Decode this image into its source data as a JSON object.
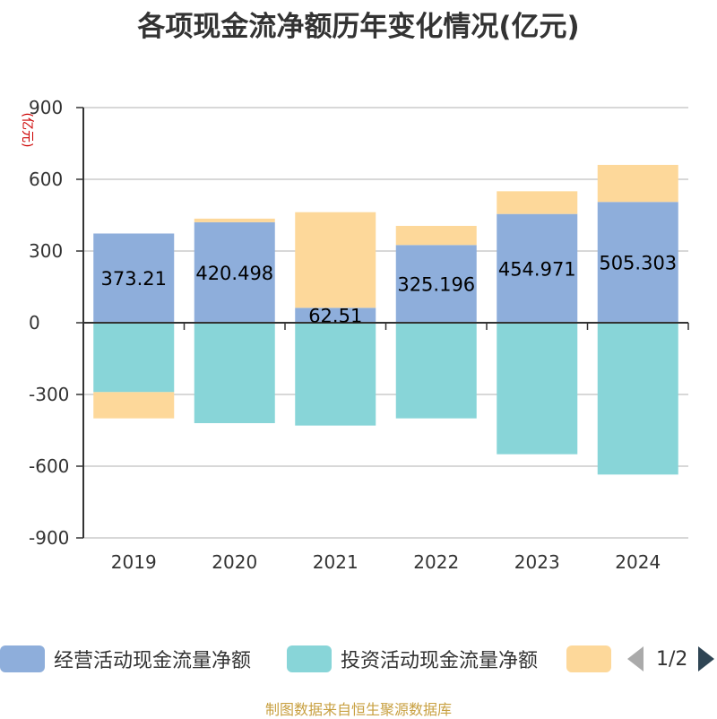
{
  "title": "各项现金流净额历年变化情况(亿元)",
  "source": "制图数据来自恒生聚源数据库",
  "legend_page": "1/2",
  "colors": {
    "operating": "#8eaedb",
    "investing": "#88d5d8",
    "financing": "#fdd89a",
    "axis": "#333333",
    "grid": "#cccccc",
    "unit": "#cc0000",
    "source": "#c8a041"
  },
  "chart_data": {
    "type": "bar",
    "stacked": true,
    "title": "各项现金流净额历年变化情况(亿元)",
    "ylabel": "(亿元)",
    "categories": [
      "2019",
      "2020",
      "2021",
      "2022",
      "2023",
      "2024"
    ],
    "ylim": [
      -900,
      900
    ],
    "yticks": [
      "900",
      "600",
      "300",
      "0",
      "-300",
      "-600",
      "-900"
    ],
    "grid": true,
    "legend_position": "bottom",
    "series": [
      {
        "name": "经营活动现金流量净额",
        "values": [
          373.21,
          420.498,
          62.51,
          325.196,
          454.971,
          505.303
        ],
        "labels": [
          "373.21",
          "420.498",
          "62.51",
          "325.196",
          "454.971",
          "505.303"
        ]
      },
      {
        "name": "投资活动现金流量净额",
        "values": [
          -290,
          -420,
          -430,
          -400,
          -550,
          -635
        ]
      },
      {
        "name": "",
        "values": [
          -110,
          15,
          400,
          80,
          95,
          155
        ]
      }
    ]
  }
}
